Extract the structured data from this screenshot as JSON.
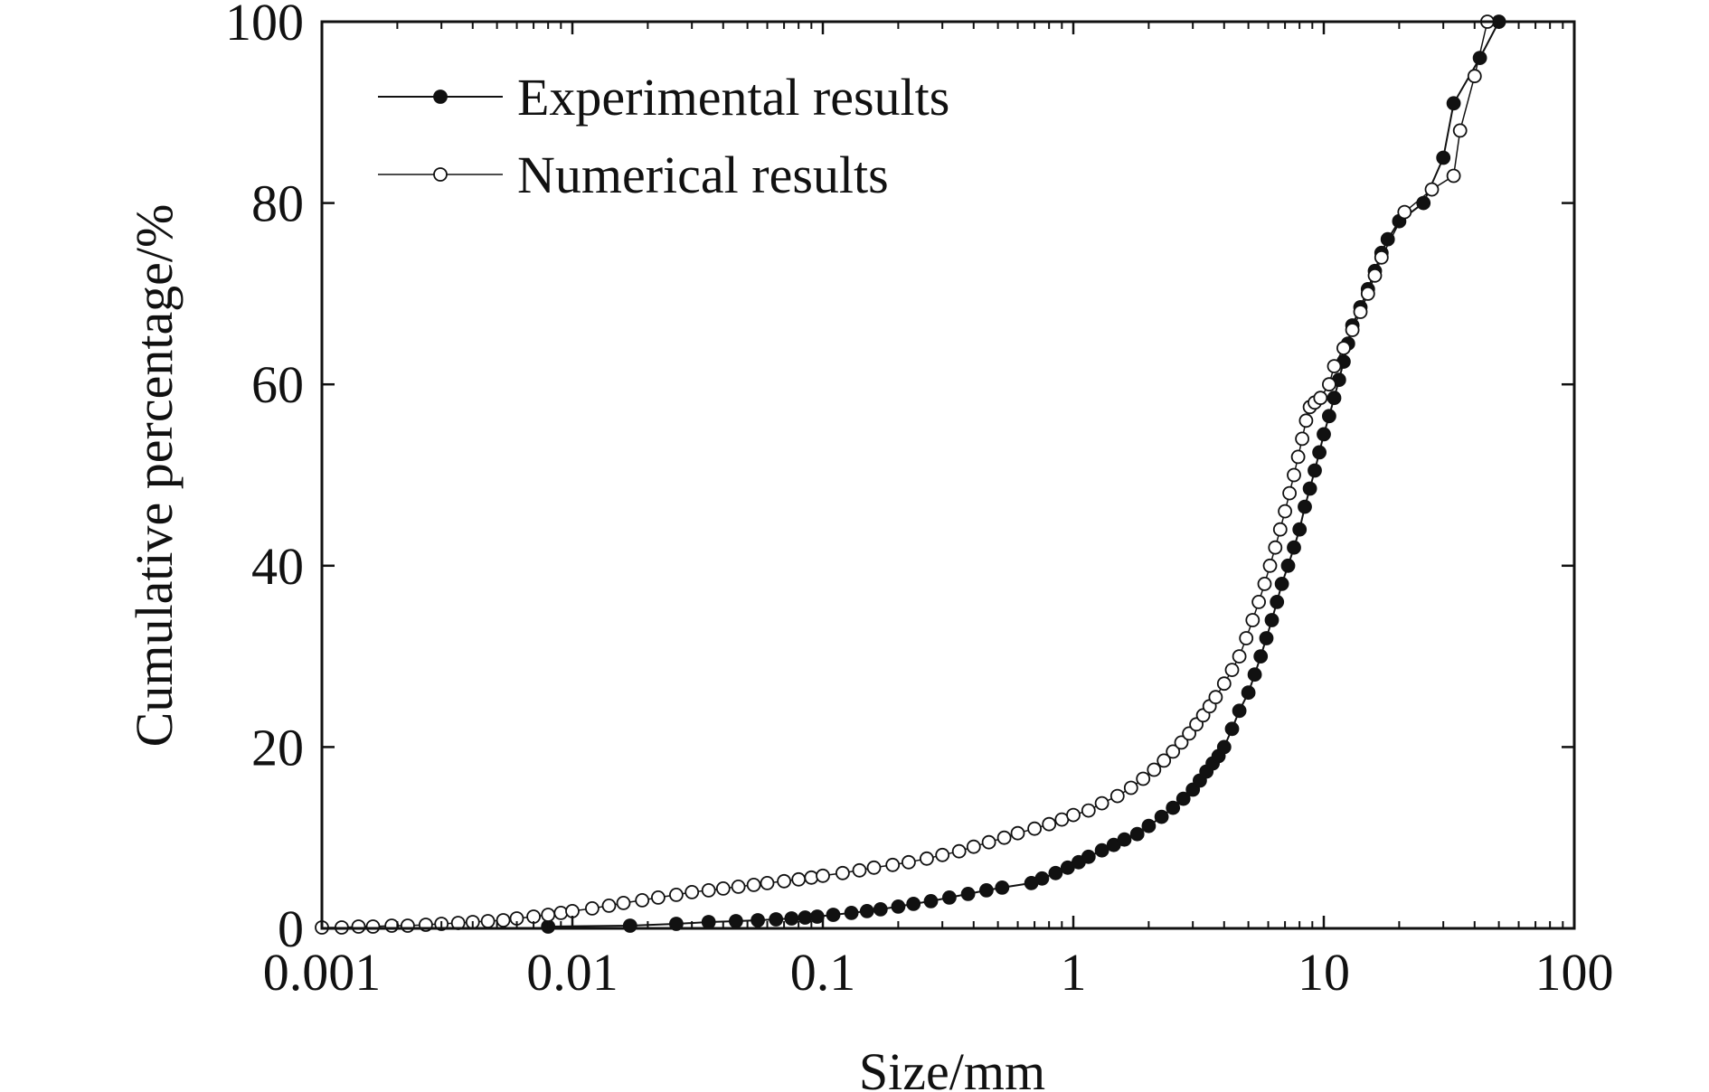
{
  "chart_data": {
    "type": "scatter",
    "title": "",
    "xlabel": "Size/mm",
    "ylabel": "Cumulative percentage/%",
    "x_scale": "log",
    "xlim": [
      0.001,
      100
    ],
    "ylim": [
      0,
      100
    ],
    "x_ticks": [
      "0.001",
      "0.01",
      "0.1",
      "1",
      "10",
      "100"
    ],
    "y_ticks": [
      "0",
      "20",
      "40",
      "60",
      "80",
      "100"
    ],
    "grid": false,
    "legend_position": "top-left",
    "series": [
      {
        "name": "Experimental results",
        "marker": "filled-circle",
        "color": "#111111",
        "x": [
          0.008,
          0.017,
          0.026,
          0.035,
          0.045,
          0.055,
          0.065,
          0.075,
          0.085,
          0.095,
          0.11,
          0.13,
          0.15,
          0.17,
          0.2,
          0.23,
          0.27,
          0.32,
          0.38,
          0.45,
          0.52,
          0.68,
          0.75,
          0.85,
          0.95,
          1.05,
          1.15,
          1.3,
          1.45,
          1.6,
          1.8,
          2.0,
          2.25,
          2.5,
          2.75,
          3.0,
          3.2,
          3.4,
          3.6,
          3.8,
          4.0,
          4.3,
          4.6,
          5.0,
          5.3,
          5.6,
          5.9,
          6.2,
          6.5,
          6.8,
          7.2,
          7.6,
          8.0,
          8.4,
          8.8,
          9.2,
          9.6,
          10.0,
          10.5,
          11.0,
          11.5,
          12.0,
          12.5,
          13.0,
          14.0,
          15.0,
          16.0,
          17.0,
          18.0,
          20.0,
          25.0,
          30.0,
          33.0,
          42.0,
          50.0
        ],
        "y": [
          0.2,
          0.3,
          0.5,
          0.7,
          0.8,
          0.9,
          1.0,
          1.1,
          1.2,
          1.3,
          1.5,
          1.7,
          1.9,
          2.1,
          2.4,
          2.7,
          3.0,
          3.4,
          3.8,
          4.2,
          4.5,
          5.0,
          5.5,
          6.1,
          6.7,
          7.3,
          7.9,
          8.6,
          9.2,
          9.8,
          10.4,
          11.3,
          12.3,
          13.3,
          14.3,
          15.3,
          16.3,
          17.3,
          18.2,
          19.0,
          20.0,
          22.0,
          24.0,
          26.0,
          28.0,
          30.0,
          32.0,
          34.0,
          36.0,
          38.0,
          40.0,
          42.0,
          44.0,
          46.5,
          48.5,
          50.5,
          52.5,
          54.5,
          56.5,
          58.5,
          60.5,
          62.5,
          64.5,
          66.5,
          68.5,
          70.5,
          72.5,
          74.5,
          76.0,
          78.0,
          80.0,
          85.0,
          91.0,
          96.0,
          100.0
        ]
      },
      {
        "name": "Numerical results",
        "marker": "open-circle",
        "color": "#111111",
        "x": [
          0.001,
          0.0012,
          0.0014,
          0.0016,
          0.0019,
          0.0022,
          0.0026,
          0.003,
          0.0035,
          0.004,
          0.0046,
          0.0053,
          0.006,
          0.007,
          0.008,
          0.009,
          0.01,
          0.012,
          0.014,
          0.016,
          0.019,
          0.022,
          0.026,
          0.03,
          0.035,
          0.04,
          0.046,
          0.053,
          0.06,
          0.07,
          0.08,
          0.09,
          0.1,
          0.12,
          0.14,
          0.16,
          0.19,
          0.22,
          0.26,
          0.3,
          0.35,
          0.4,
          0.46,
          0.53,
          0.6,
          0.7,
          0.8,
          0.9,
          1.0,
          1.15,
          1.3,
          1.5,
          1.7,
          1.9,
          2.1,
          2.3,
          2.5,
          2.7,
          2.9,
          3.1,
          3.3,
          3.5,
          3.7,
          4.0,
          4.3,
          4.6,
          4.9,
          5.2,
          5.5,
          5.8,
          6.1,
          6.4,
          6.7,
          7.0,
          7.3,
          7.6,
          7.9,
          8.2,
          8.5,
          8.8,
          9.2,
          9.7,
          10.5,
          11.0,
          12.0,
          13.0,
          14.0,
          15.0,
          16.0,
          17.0,
          21.0,
          27.0,
          33.0,
          35.0,
          40.0,
          45.0
        ],
        "y": [
          0.1,
          0.1,
          0.2,
          0.2,
          0.3,
          0.3,
          0.4,
          0.5,
          0.6,
          0.7,
          0.8,
          0.9,
          1.1,
          1.3,
          1.5,
          1.7,
          1.9,
          2.2,
          2.5,
          2.8,
          3.1,
          3.4,
          3.7,
          4.0,
          4.2,
          4.4,
          4.6,
          4.8,
          5.0,
          5.2,
          5.4,
          5.6,
          5.8,
          6.1,
          6.4,
          6.7,
          7.0,
          7.3,
          7.7,
          8.1,
          8.5,
          9.0,
          9.5,
          10.0,
          10.5,
          11.0,
          11.5,
          12.0,
          12.5,
          13.0,
          13.8,
          14.6,
          15.5,
          16.5,
          17.5,
          18.5,
          19.5,
          20.5,
          21.5,
          22.5,
          23.5,
          24.5,
          25.5,
          27.0,
          28.5,
          30.0,
          32.0,
          34.0,
          36.0,
          38.0,
          40.0,
          42.0,
          44.0,
          46.0,
          48.0,
          50.0,
          52.0,
          54.0,
          56.0,
          57.5,
          58.0,
          58.5,
          60.0,
          62.0,
          64.0,
          66.0,
          68.0,
          70.0,
          72.0,
          74.0,
          79.0,
          81.5,
          83.0,
          88.0,
          94.0,
          100.0
        ]
      }
    ]
  },
  "colors": {
    "ink": "#111111",
    "background": "#ffffff",
    "open_marker_fill": "#ffffff"
  }
}
